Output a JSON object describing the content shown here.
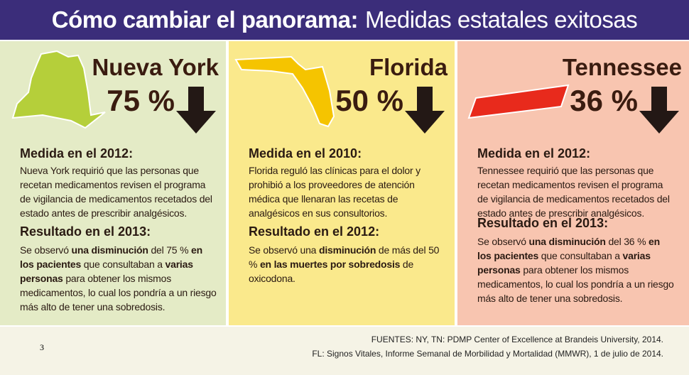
{
  "header": {
    "title_bold": "Cómo cambiar el panorama:",
    "title_rest": "Medidas estatales exitosas"
  },
  "panels": [
    {
      "state": "Nueva York",
      "percent": "75 %",
      "color": "#e4ebc6",
      "shape_color": "#b5cf3a",
      "measure_heading": "Medida en el 2012:",
      "measure_text": "Nueva York requirió que las personas que recetan medicamentos revisen el programa de vigilancia de medicamentos recetados del estado antes de prescribir analgésicos.",
      "result_heading": "Resultado en el 2013:",
      "result": [
        {
          "text": "Se observó ",
          "bold": false
        },
        {
          "text": "una disminución",
          "bold": true
        },
        {
          "text": " del 75 % ",
          "bold": false
        },
        {
          "text": "en los pacientes",
          "bold": true
        },
        {
          "text": " que consultaban a ",
          "bold": false
        },
        {
          "text": "varias personas",
          "bold": true
        },
        {
          "text": " para obtener los mismos medicamentos, lo cual los pondría a un riesgo más alto de tener una sobredosis.",
          "bold": false
        }
      ]
    },
    {
      "state": "Florida",
      "percent": "50 %",
      "color": "#fae98c",
      "shape_color": "#f5c400",
      "measure_heading": "Medida en el 2010:",
      "measure_text": "Florida reguló las clínicas para el dolor y prohibió a los proveedores de atención médica que llenaran las recetas de analgésicos en sus consultorios.",
      "result_heading": "Resultado en el 2012:",
      "result": [
        {
          "text": "Se observó una ",
          "bold": false
        },
        {
          "text": "disminución",
          "bold": true
        },
        {
          "text": " de más del 50 % ",
          "bold": false
        },
        {
          "text": "en las muertes por sobredosis",
          "bold": true
        },
        {
          "text": " de oxicodona.",
          "bold": false
        }
      ]
    },
    {
      "state": "Tennessee",
      "percent": "36 %",
      "color": "#f8c5b0",
      "shape_color": "#e82a1c",
      "measure_heading": "Medida en el 2012:",
      "measure_text": "Tennessee requirió que las personas que recetan medicamentos revisen el programa de vigilancia de medicamentos recetados del estado antes de prescribir analgésicos.",
      "result_heading": "Resultado en el 2013:",
      "result": [
        {
          "text": "Se observó ",
          "bold": false
        },
        {
          "text": "una disminución",
          "bold": true
        },
        {
          "text": " del 36 % ",
          "bold": false
        },
        {
          "text": "en los pacientes",
          "bold": true
        },
        {
          "text": " que consultaban a ",
          "bold": false
        },
        {
          "text": "varias personas",
          "bold": true
        },
        {
          "text": " para obtener los mismos medicamentos, lo cual los pondría a un riesgo más alto de tener una sobredosis.",
          "bold": false
        }
      ]
    }
  ],
  "footer": {
    "page": "3",
    "sources": [
      "FUENTES: NY, TN: PDMP Center of Excellence at Brandeis University, 2014.",
      "FL: Signos Vitales, Informe Semanal de Morbilidad y Mortalidad (MMWR), 1 de julio de 2014."
    ]
  }
}
